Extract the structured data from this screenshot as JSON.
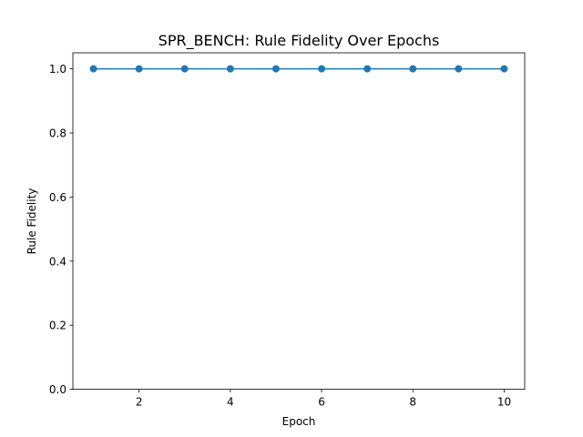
{
  "chart_data": {
    "type": "line",
    "title": "SPR_BENCH: Rule Fidelity Over Epochs",
    "xlabel": "Epoch",
    "ylabel": "Rule Fidelity",
    "x": [
      1,
      2,
      3,
      4,
      5,
      6,
      7,
      8,
      9,
      10
    ],
    "series": [
      {
        "values": [
          1.0,
          1.0,
          1.0,
          1.0,
          1.0,
          1.0,
          1.0,
          1.0,
          1.0,
          1.0
        ]
      }
    ],
    "xlim": [
      0.55,
      10.45
    ],
    "ylim": [
      0.0,
      1.05
    ],
    "xticks": [
      2,
      4,
      6,
      8,
      10
    ],
    "xtick_labels": [
      "2",
      "4",
      "6",
      "8",
      "10"
    ],
    "yticks": [
      0.0,
      0.2,
      0.4,
      0.6,
      0.8,
      1.0
    ],
    "ytick_labels": [
      "0.0",
      "0.2",
      "0.4",
      "0.6",
      "0.8",
      "1.0"
    ],
    "grid": false,
    "legend": "none",
    "line_color": "#1f77b4",
    "marker": "circle"
  }
}
